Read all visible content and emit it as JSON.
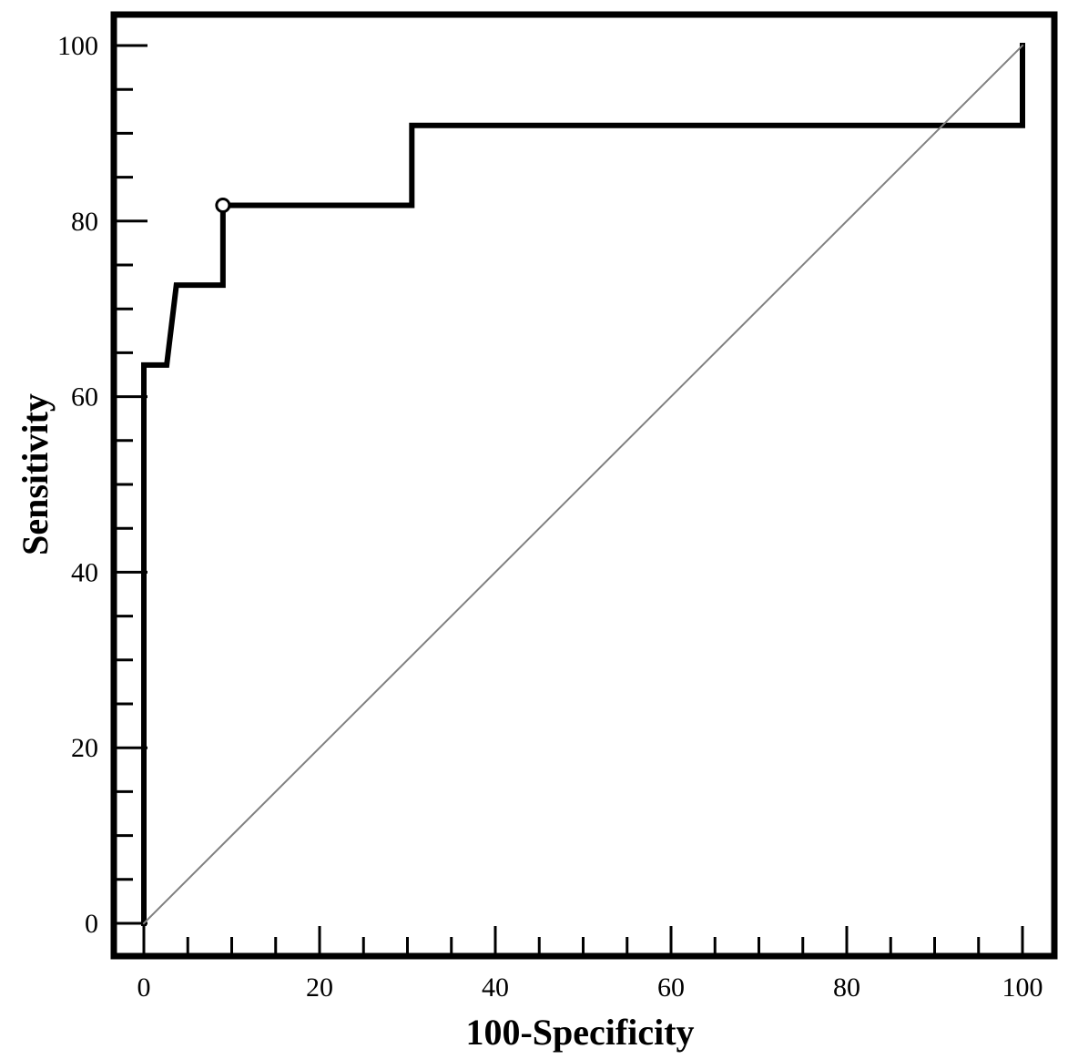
{
  "chart_data": {
    "type": "line",
    "title": "",
    "xlabel": "100-Specificity",
    "ylabel": "Sensitivity",
    "xlim": [
      0,
      100
    ],
    "ylim": [
      0,
      100
    ],
    "x_ticks": [
      0,
      20,
      40,
      60,
      80,
      100
    ],
    "y_ticks": [
      0,
      20,
      40,
      60,
      80,
      100
    ],
    "x_tick_labels": [
      "0",
      "20",
      "40",
      "60",
      "80",
      "100"
    ],
    "y_tick_labels": [
      "0",
      "20",
      "40",
      "60",
      "80",
      "100"
    ],
    "x_minor_step": 5,
    "y_minor_step": 5,
    "grid": false,
    "legend": "none",
    "series": [
      {
        "role": "roc-curve",
        "color": "#000000",
        "x": [
          0,
          0,
          2.6,
          3.7,
          9.0,
          9.0,
          30.5,
          30.5,
          100,
          100
        ],
        "y": [
          0,
          63.6,
          63.6,
          72.7,
          72.7,
          81.8,
          81.8,
          90.9,
          90.9,
          100
        ]
      },
      {
        "role": "reference-diagonal",
        "color": "#808080",
        "x": [
          0,
          100
        ],
        "y": [
          0,
          100
        ]
      }
    ],
    "marker": {
      "x": 9.0,
      "y": 81.8,
      "shape": "open-circle"
    }
  }
}
